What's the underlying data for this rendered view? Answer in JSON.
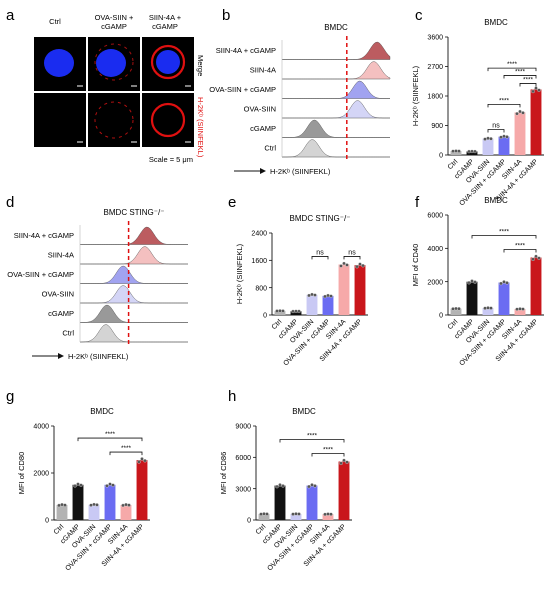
{
  "figure": {
    "panels": {
      "a": "a",
      "b": "b",
      "c": "c",
      "d": "d",
      "e": "e",
      "f": "f",
      "g": "g",
      "h": "h"
    },
    "micrograph": {
      "columns": [
        "Ctrl",
        "OVA-SIIN +\ncGAMP",
        "SIIN-4A +\ncGAMP"
      ],
      "row_labels": [
        "Merge",
        "H-2Kᵇ (SIINFEKL)"
      ],
      "scale": "Scale = 5 μm",
      "colors": {
        "nucleus": "#1030e8",
        "membrane": "#e01010",
        "background": "#000000"
      }
    },
    "colors": {
      "Ctrl": "#b3b3b3",
      "cGAMP": "#111111",
      "OVA-SIIN": "#c9c9f4",
      "OVA-SIIN + cGAMP": "#6b6cf2",
      "SIIN-4A": "#f6a9a9",
      "SIIN-4A + cGAMP": "#c9161b"
    }
  },
  "chart_data": [
    {
      "panel": "b",
      "type": "histogram",
      "title": "BMDC",
      "xlabel": "H-2Kᵇ (SIINFEKL)",
      "rows": [
        "SIIN-4A + cGAMP",
        "SIIN-4A",
        "OVA-SIIN + cGAMP",
        "OVA-SIIN",
        "cGAMP",
        "Ctrl"
      ],
      "peak_position": [
        0.88,
        0.85,
        0.72,
        0.7,
        0.3,
        0.28
      ],
      "fill_colors": [
        "#b54a4f",
        "#f3b9b9",
        "#9799ee",
        "#cfd0f5",
        "#8e8e8e",
        "#cfcfcf"
      ],
      "reference_line": 0.6
    },
    {
      "panel": "c",
      "type": "bar",
      "title": "BMDC",
      "ylabel": "H-2Kᵇ (SIINFEKL)",
      "categories": [
        "Ctrl",
        "cGAMP",
        "OVA-SIIN",
        "OVA-SIIN + cGAMP",
        "SIIN-4A",
        "SIIN-4A + cGAMP"
      ],
      "values": [
        120,
        110,
        500,
        560,
        1300,
        2000
      ],
      "yticks": [
        0,
        900,
        1800,
        2700,
        3600
      ],
      "ylim": [
        0,
        3600
      ],
      "significance": [
        {
          "from": 2,
          "to": 3,
          "label": "ns"
        },
        {
          "from": 2,
          "to": 4,
          "label": "****"
        },
        {
          "from": 3,
          "to": 5,
          "label": "****"
        },
        {
          "from": 4,
          "to": 5,
          "label": "****"
        },
        {
          "from": 2,
          "to": 5,
          "label": "****"
        }
      ]
    },
    {
      "panel": "d",
      "type": "histogram",
      "title": "BMDC STING⁻/⁻",
      "xlabel": "H-2Kᵇ (SIINFEKL)",
      "rows": [
        "SIIN-4A + cGAMP",
        "SIIN-4A",
        "OVA-SIIN + cGAMP",
        "OVA-SIIN",
        "cGAMP",
        "Ctrl"
      ],
      "peak_position": [
        0.62,
        0.6,
        0.4,
        0.4,
        0.25,
        0.24
      ],
      "fill_colors": [
        "#b54a4f",
        "#f3b9b9",
        "#9799ee",
        "#cfd0f5",
        "#8e8e8e",
        "#cfcfcf"
      ],
      "reference_line": 0.45
    },
    {
      "panel": "e",
      "type": "bar",
      "title": "BMDC STING⁻/⁻",
      "ylabel": "H-2Kᵇ (SIINFEKL)",
      "categories": [
        "Ctrl",
        "cGAMP",
        "OVA-SIIN",
        "OVA-SIIN + cGAMP",
        "SIIN-4A",
        "SIIN-4A + cGAMP"
      ],
      "values": [
        120,
        110,
        590,
        560,
        1480,
        1460
      ],
      "yticks": [
        0,
        800,
        1600,
        2400
      ],
      "ylim": [
        0,
        2400
      ],
      "significance": [
        {
          "from": 2,
          "to": 3,
          "label": "ns"
        },
        {
          "from": 4,
          "to": 5,
          "label": "ns"
        }
      ]
    },
    {
      "panel": "f",
      "type": "bar",
      "title": "BMDC",
      "ylabel": "MFI of CD40",
      "categories": [
        "Ctrl",
        "cGAMP",
        "OVA-SIIN",
        "OVA-SIIN + cGAMP",
        "SIIN-4A",
        "SIIN-4A + cGAMP"
      ],
      "values": [
        380,
        2000,
        420,
        1950,
        360,
        3450
      ],
      "yticks": [
        0,
        2000,
        4000,
        6000
      ],
      "ylim": [
        0,
        6000
      ],
      "significance": [
        {
          "from": 1,
          "to": 5,
          "label": "****"
        },
        {
          "from": 3,
          "to": 5,
          "label": "****"
        }
      ]
    },
    {
      "panel": "g",
      "type": "bar",
      "title": "BMDC",
      "ylabel": "MFI of CD80",
      "categories": [
        "Ctrl",
        "cGAMP",
        "OVA-SIIN",
        "OVA-SIIN + cGAMP",
        "SIIN-4A",
        "SIIN-4A + cGAMP"
      ],
      "values": [
        640,
        1500,
        650,
        1500,
        640,
        2550
      ],
      "yticks": [
        0,
        2000,
        4000
      ],
      "ylim": [
        0,
        4000
      ],
      "significance": [
        {
          "from": 1,
          "to": 5,
          "label": "****"
        },
        {
          "from": 3,
          "to": 5,
          "label": "****"
        }
      ]
    },
    {
      "panel": "h",
      "type": "bar",
      "title": "BMDC",
      "ylabel": "MFI of CD86",
      "categories": [
        "Ctrl",
        "cGAMP",
        "OVA-SIIN",
        "OVA-SIIN + cGAMP",
        "SIIN-4A",
        "SIIN-4A + cGAMP"
      ],
      "values": [
        580,
        3300,
        580,
        3300,
        560,
        5600
      ],
      "yticks": [
        0,
        3000,
        6000,
        9000
      ],
      "ylim": [
        0,
        9000
      ],
      "significance": [
        {
          "from": 1,
          "to": 5,
          "label": "****"
        },
        {
          "from": 3,
          "to": 5,
          "label": "****"
        }
      ]
    }
  ]
}
